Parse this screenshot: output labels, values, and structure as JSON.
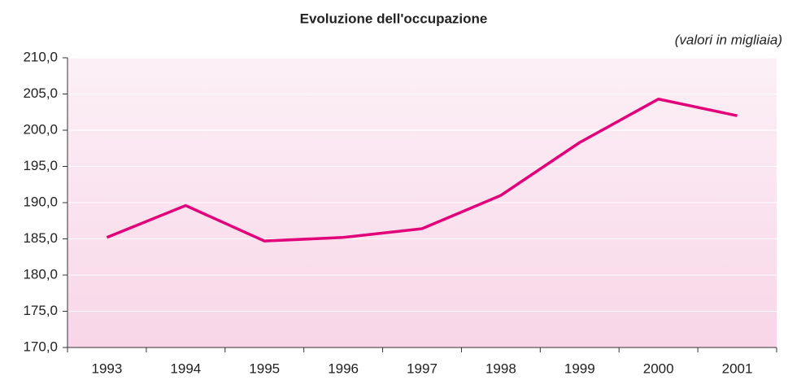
{
  "chart_data": {
    "type": "line",
    "title": "Evoluzione dell'occupazione",
    "subtitle": "(valori in migliaia)",
    "categories": [
      "1993",
      "1994",
      "1995",
      "1996",
      "1997",
      "1998",
      "1999",
      "2000",
      "2001"
    ],
    "values": [
      185.2,
      189.6,
      184.7,
      185.2,
      186.4,
      191.0,
      198.3,
      204.3,
      202.0
    ],
    "color": "#e2007a",
    "ylim": [
      170,
      210
    ],
    "yticks": [
      {
        "value": 170,
        "label": "170,0"
      },
      {
        "value": 175,
        "label": "175,0"
      },
      {
        "value": 180,
        "label": "180,0"
      },
      {
        "value": 185,
        "label": "185,0"
      },
      {
        "value": 190,
        "label": "190,0"
      },
      {
        "value": 195,
        "label": "195,0"
      },
      {
        "value": 200,
        "label": "200,0"
      },
      {
        "value": 205,
        "label": "205,0"
      },
      {
        "value": 210,
        "label": "210,0"
      }
    ],
    "grid": true
  }
}
